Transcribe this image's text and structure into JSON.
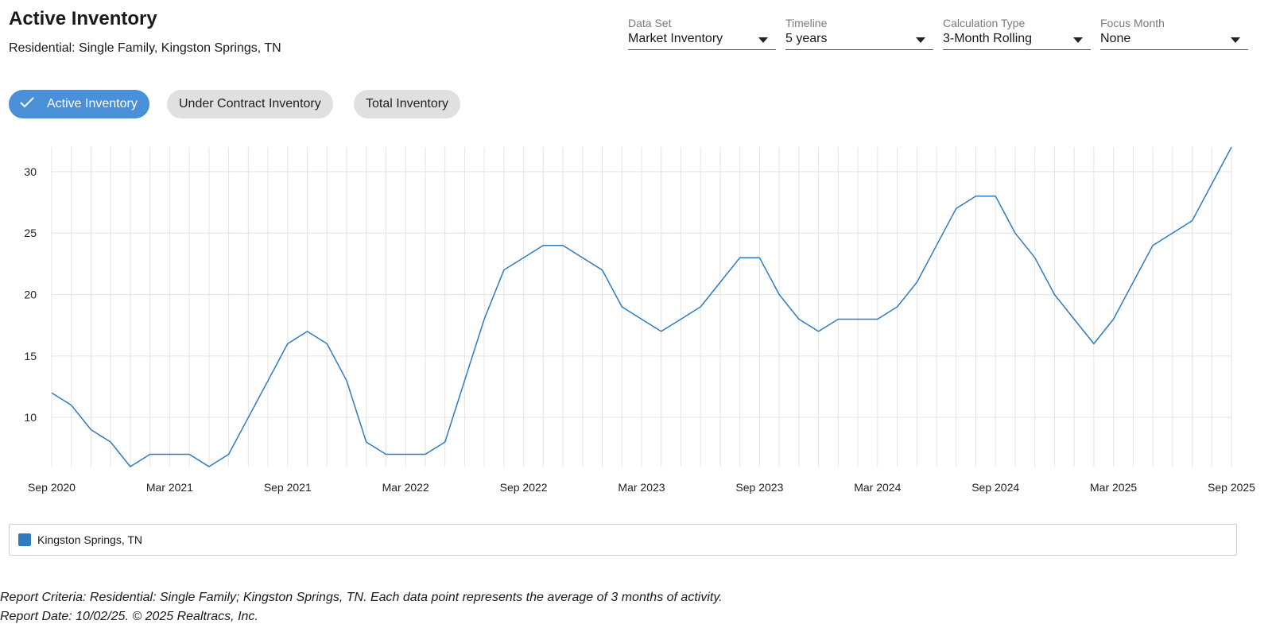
{
  "header": {
    "title": "Active Inventory",
    "subtitle": "Residential: Single Family, Kingston Springs, TN"
  },
  "filters": [
    {
      "label": "Data Set",
      "value": "Market Inventory"
    },
    {
      "label": "Timeline",
      "value": "5 years"
    },
    {
      "label": "Calculation Type",
      "value": "3-Month Rolling"
    },
    {
      "label": "Focus Month",
      "value": "None"
    }
  ],
  "toggles": [
    {
      "label": "Active Inventory",
      "selected": true
    },
    {
      "label": "Under Contract Inventory",
      "selected": false
    },
    {
      "label": "Total Inventory",
      "selected": false
    }
  ],
  "chart_data": {
    "type": "line",
    "series": [
      {
        "name": "Kingston Springs, TN",
        "color": "#2e7bbf",
        "values": [
          12,
          11,
          9,
          8,
          6,
          7,
          7,
          7,
          6,
          7,
          10,
          13,
          16,
          17,
          16,
          13,
          8,
          7,
          7,
          7,
          8,
          13,
          18,
          22,
          23,
          24,
          24,
          23,
          22,
          19,
          18,
          17,
          18,
          19,
          21,
          23,
          23,
          20,
          18,
          17,
          18,
          18,
          18,
          19,
          21,
          24,
          27,
          28,
          28,
          25,
          23,
          20,
          18,
          16,
          18,
          21,
          24,
          25,
          26,
          29,
          32
        ]
      }
    ],
    "x_start": "Sep 2020",
    "x_end": "Sep 2025",
    "x_interval": "monthly",
    "x_ticks": [
      "Sep 2020",
      "Mar 2021",
      "Sep 2021",
      "Mar 2022",
      "Sep 2022",
      "Mar 2023",
      "Sep 2023",
      "Mar 2024",
      "Sep 2024",
      "Mar 2025",
      "Sep 2025"
    ],
    "y_ticks": [
      10,
      15,
      20,
      25,
      30
    ],
    "ylim": [
      6,
      32
    ],
    "grid": true,
    "legend_position": "bottom"
  },
  "legend": {
    "label": "Kingston Springs, TN"
  },
  "footer": {
    "criteria": "Report Criteria: Residential: Single Family; Kingston Springs, TN. Each data point represents the average of 3 months of activity.",
    "date": "Report Date: 10/02/25. © 2025 Realtracs, Inc."
  }
}
